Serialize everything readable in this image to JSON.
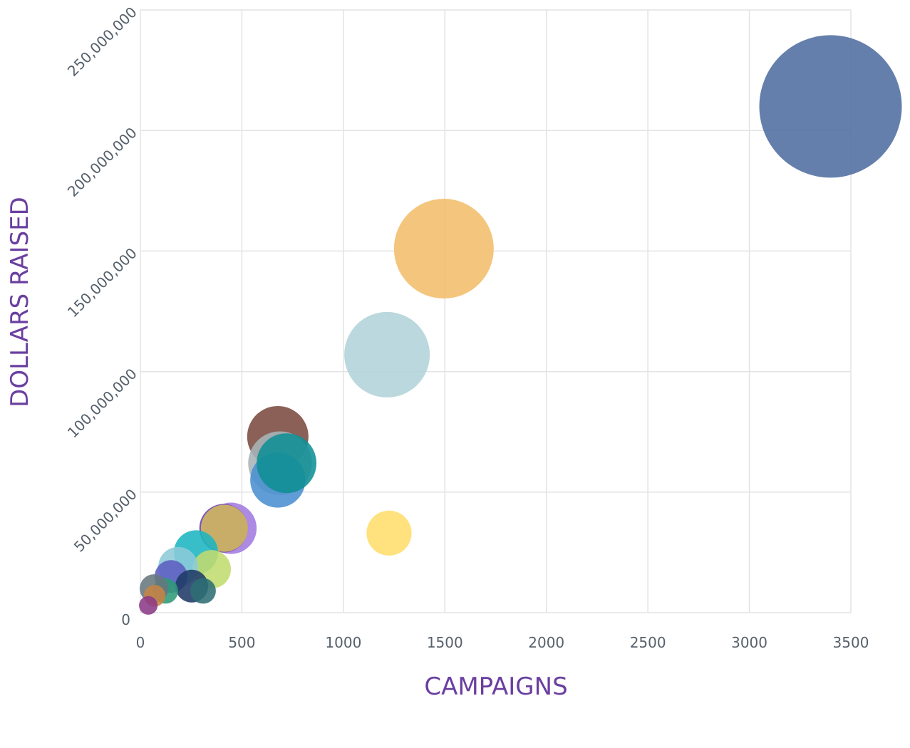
{
  "chart_data": {
    "type": "scatter",
    "subtype": "bubble",
    "title": "",
    "xlabel": "CAMPAIGNS",
    "ylabel": "DOLLARS RAISED",
    "xlim": [
      0,
      3500
    ],
    "ylim": [
      0,
      250000000
    ],
    "xticks": [
      0,
      500,
      1000,
      1500,
      2000,
      2500,
      3000,
      3500
    ],
    "xtick_labels": [
      "0",
      "500",
      "1000",
      "1500",
      "2000",
      "2500",
      "3000",
      "3500"
    ],
    "yticks": [
      0,
      50000000,
      100000000,
      150000000,
      200000000,
      250000000
    ],
    "ytick_labels": [
      "0",
      "50,000,000",
      "100,000,000",
      "150,000,000",
      "200,000,000",
      "250,000,000"
    ],
    "grid": true,
    "legend": "none",
    "size_encoding": "bubble area relative to largest",
    "points": [
      {
        "x": 3400,
        "y": 210000000,
        "size": 1.0,
        "color": "#4e6d9f"
      },
      {
        "x": 1495,
        "y": 151000000,
        "size": 0.49,
        "color": "#f3bd6a"
      },
      {
        "x": 1215,
        "y": 107000000,
        "size": 0.36,
        "color": "#b0d3d8"
      },
      {
        "x": 677,
        "y": 73000000,
        "size": 0.185,
        "color": "#7a4a40"
      },
      {
        "x": 688,
        "y": 62000000,
        "size": 0.2,
        "color": "#a9b4b8"
      },
      {
        "x": 677,
        "y": 55000000,
        "size": 0.15,
        "color": "#4a8fd0"
      },
      {
        "x": 720,
        "y": 62000000,
        "size": 0.176,
        "color": "#0f8f95"
      },
      {
        "x": 1225,
        "y": 33000000,
        "size": 0.1,
        "color": "#ffde6b"
      },
      {
        "x": 446,
        "y": 35000000,
        "size": 0.13,
        "color": "#a27ae0"
      },
      {
        "x": 410,
        "y": 35000000,
        "size": 0.116,
        "color": "#6a3fb0"
      },
      {
        "x": 414,
        "y": 35000000,
        "size": 0.109,
        "color": "#d4bb5e"
      },
      {
        "x": 274,
        "y": 25000000,
        "size": 0.096,
        "color": "#1bb5c0"
      },
      {
        "x": 351,
        "y": 18000000,
        "size": 0.073,
        "color": "#c2dc70"
      },
      {
        "x": 186,
        "y": 19000000,
        "size": 0.078,
        "color": "#8dcbd8"
      },
      {
        "x": 151,
        "y": 15000000,
        "size": 0.053,
        "color": "#5c5cc0"
      },
      {
        "x": 253,
        "y": 11000000,
        "size": 0.053,
        "color": "#1f3a66"
      },
      {
        "x": 309,
        "y": 9000000,
        "size": 0.032,
        "color": "#2e6e74"
      },
      {
        "x": 123,
        "y": 9000000,
        "size": 0.032,
        "color": "#2f9a78"
      },
      {
        "x": 67,
        "y": 10000000,
        "size": 0.04,
        "color": "#66777d"
      },
      {
        "x": 70,
        "y": 7000000,
        "size": 0.023,
        "color": "#c58444"
      },
      {
        "x": 39,
        "y": 3000000,
        "size": 0.017,
        "color": "#8c3a88"
      }
    ]
  }
}
